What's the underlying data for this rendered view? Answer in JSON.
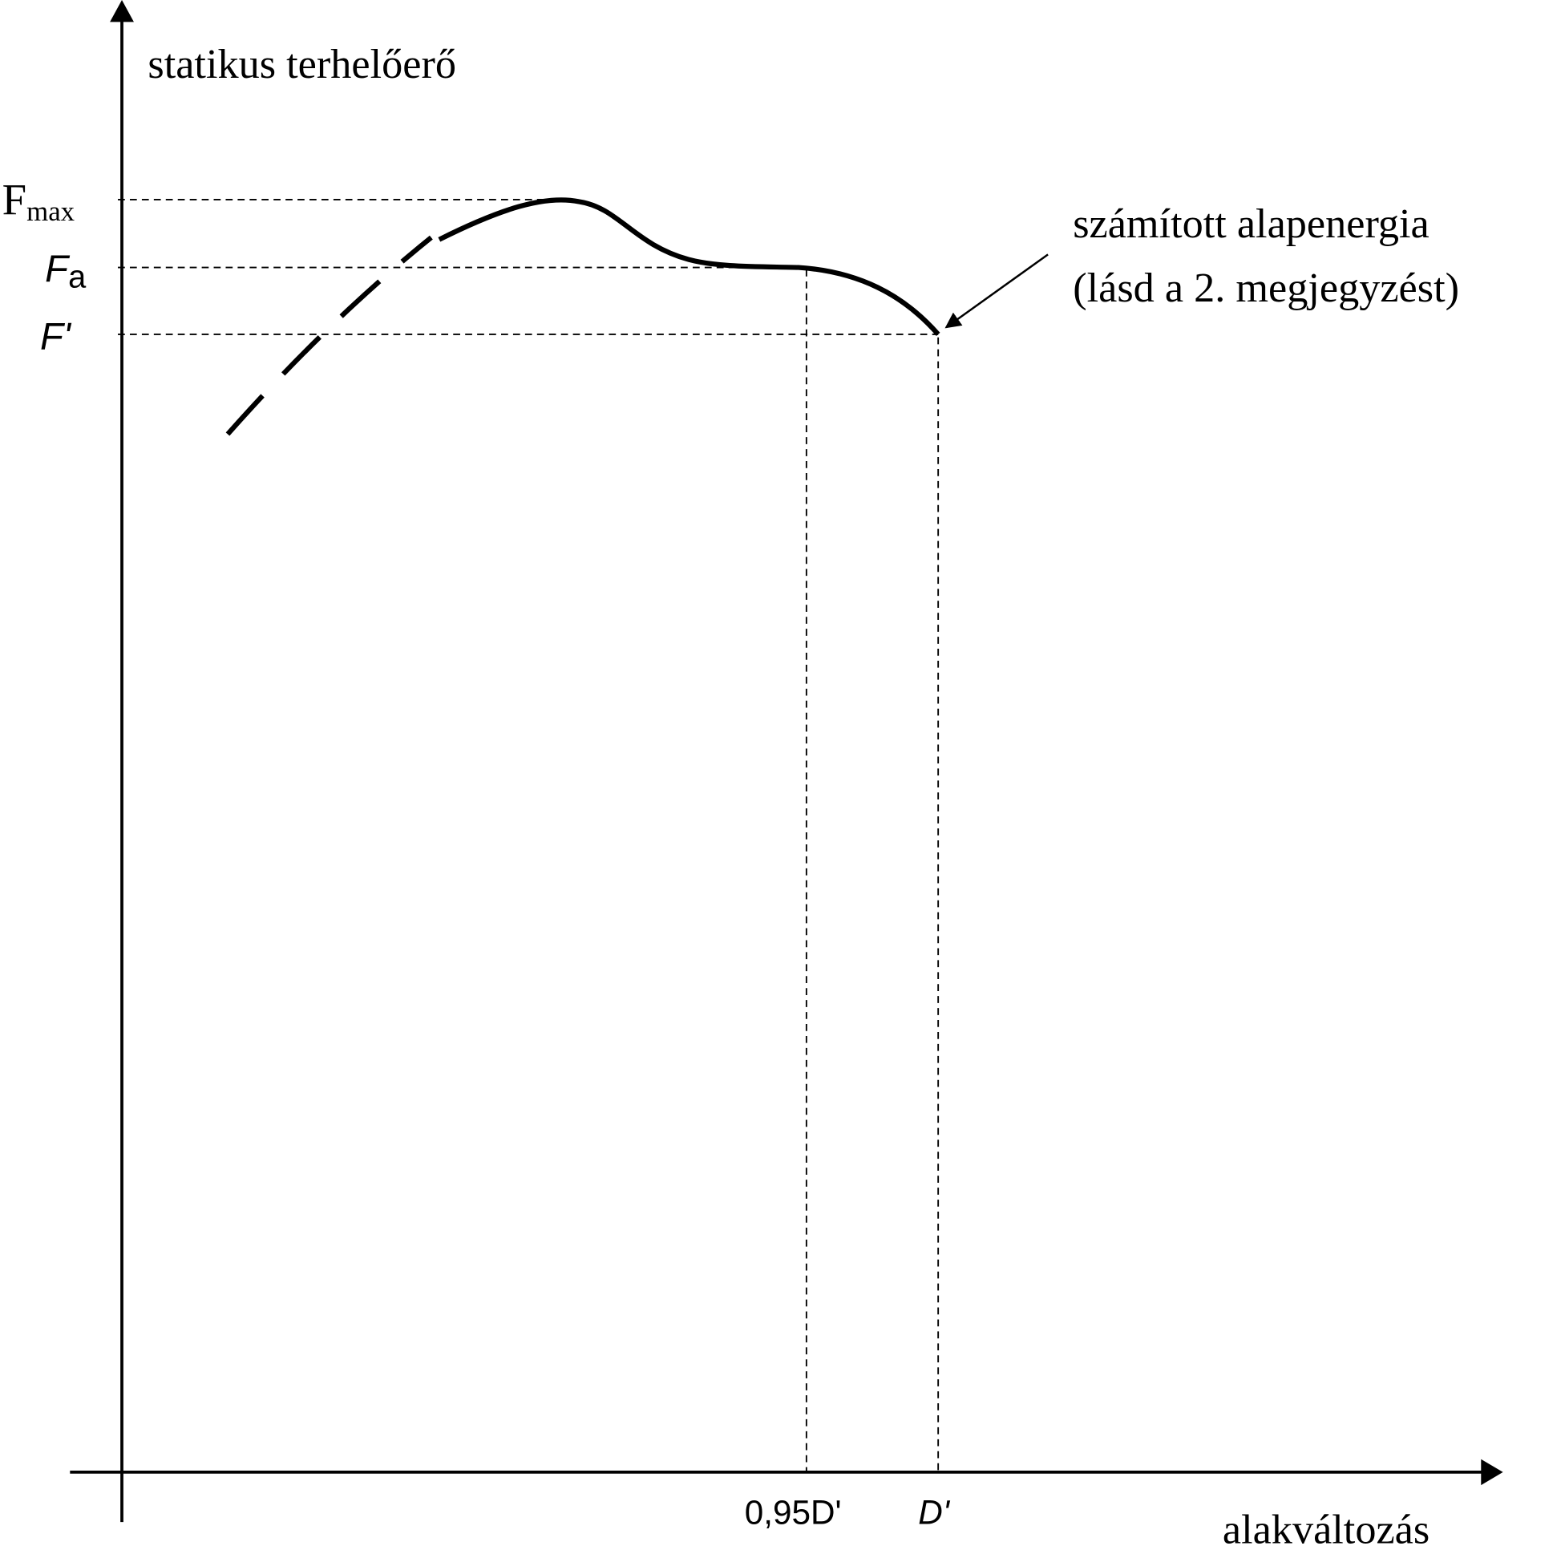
{
  "chart_data": {
    "type": "line",
    "title": "",
    "ylabel": "statikus terhelőerő",
    "xlabel": "alakváltozás",
    "y_tick_labels": [
      {
        "main": "F",
        "sub": "max"
      },
      {
        "main": "F",
        "sub": "a"
      },
      {
        "main": "F'",
        "sub": ""
      }
    ],
    "x_tick_labels": [
      "0,95D'",
      "D'"
    ],
    "annotation": {
      "line1": "számított alapenergia",
      "line2": "(lásd a 2. megjegyzést)"
    },
    "grid": false,
    "colors": {
      "ink": "#000000",
      "background": "#ffffff"
    }
  }
}
